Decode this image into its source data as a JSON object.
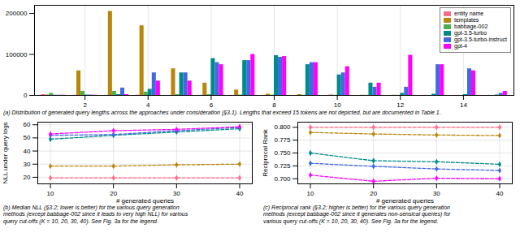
{
  "chart_data": [
    {
      "type": "bar",
      "x": [
        1,
        2,
        3,
        4,
        5,
        6,
        7,
        8,
        9,
        10,
        11,
        12,
        13,
        14,
        15
      ],
      "series": [
        {
          "name": "entity name",
          "color": "#FF6B8A",
          "values": [
            2000,
            500,
            300,
            800,
            200,
            500,
            200,
            300,
            100,
            200,
            100,
            100,
            200,
            100,
            50
          ]
        },
        {
          "name": "templates",
          "color": "#B8860B",
          "values": [
            1000,
            60000,
            205000,
            170000,
            65000,
            30000,
            13000,
            3000,
            2000,
            1000,
            500,
            500,
            300,
            200,
            100
          ]
        },
        {
          "name": "babbage-002",
          "color": "#4CAF50",
          "values": [
            5000,
            10000,
            10000,
            8000,
            2000,
            2000,
            1000,
            800,
            500,
            400,
            300,
            200,
            150,
            100,
            50
          ]
        },
        {
          "name": "gpt-3.5-turbo",
          "color": "#008B8B",
          "values": [
            500,
            1000,
            2000,
            15000,
            55000,
            90000,
            85000,
            97000,
            75000,
            50000,
            30000,
            5000,
            3000,
            2000,
            1000
          ]
        },
        {
          "name": "gpt-3.5-turbo-instruct",
          "color": "#4169E1",
          "values": [
            500,
            1000,
            18000,
            55000,
            55000,
            80000,
            85000,
            93000,
            80000,
            55000,
            20000,
            20000,
            75000,
            65000,
            5000
          ]
        },
        {
          "name": "gpt-4",
          "color": "#FF00FF",
          "values": [
            500,
            500,
            2000,
            35000,
            35000,
            75000,
            100000,
            95000,
            80000,
            70000,
            30000,
            98000,
            75000,
            60000,
            10000
          ]
        }
      ],
      "xlim": [
        0.4,
        15.6
      ],
      "xticks": [
        2,
        4,
        6,
        8,
        10,
        12,
        14
      ],
      "ylim": [
        0,
        220000
      ],
      "yticks": [
        0,
        100000,
        200000
      ],
      "grid": "x",
      "legend": "upper right",
      "caption": "(a) Distribution of generated query lengths across the approaches under consideration (§3.1). Lengths that exceed 15 tokens are not depicted, but are documented in Table 1."
    },
    {
      "type": "line",
      "x": [
        10,
        20,
        30,
        40
      ],
      "series": [
        {
          "name": "entity name",
          "color": "#FF6B8A",
          "values": [
            19.5,
            19.5,
            19.5,
            19.5
          ]
        },
        {
          "name": "templates",
          "color": "#B8860B",
          "values": [
            28.5,
            28.5,
            29.5,
            30.0
          ]
        },
        {
          "name": "gpt-3.5-turbo",
          "color": "#008B8B",
          "values": [
            49.0,
            52.0,
            54.5,
            57.0
          ]
        },
        {
          "name": "gpt-3.5-turbo-instruct",
          "color": "#4169E1",
          "values": [
            52.0,
            52.5,
            55.5,
            58.0
          ]
        },
        {
          "name": "gpt-4",
          "color": "#FF00FF",
          "values": [
            53.0,
            55.5,
            56.5,
            58.5
          ]
        }
      ],
      "xlabel": "# generated queries",
      "ylabel": "NLL under query logs",
      "xlim": [
        8,
        42
      ],
      "xticks": [
        10,
        20,
        30,
        40
      ],
      "ylim": [
        15,
        62
      ],
      "yticks": [
        20,
        30,
        40,
        50,
        60
      ],
      "grid": true,
      "marker": "diamond",
      "line_style": "dashed",
      "caption": "(b) Median NLL (§3.2; lower is better) for the various query generation\nmethods (except babbage‑002 since it leads to very high NLL) for various\nquery cut-offs (K = 10, 20, 30, 40). See Fig. 3a for the legend."
    },
    {
      "type": "line",
      "x": [
        10,
        20,
        30,
        40
      ],
      "series": [
        {
          "name": "entity name",
          "color": "#FF6B8A",
          "values": [
            0.8,
            0.8,
            0.8,
            0.8
          ]
        },
        {
          "name": "templates",
          "color": "#B8860B",
          "values": [
            0.79,
            0.787,
            0.785,
            0.784
          ]
        },
        {
          "name": "gpt-3.5-turbo",
          "color": "#008B8B",
          "values": [
            0.75,
            0.735,
            0.733,
            0.728
          ]
        },
        {
          "name": "gpt-3.5-turbo-instruct",
          "color": "#4169E1",
          "values": [
            0.73,
            0.724,
            0.719,
            0.716
          ]
        },
        {
          "name": "gpt-4",
          "color": "#FF00FF",
          "values": [
            0.707,
            0.695,
            0.701,
            0.7
          ]
        }
      ],
      "xlabel": "# generated queries",
      "ylabel": "Reciprocal Rank",
      "xlim": [
        8,
        42
      ],
      "xticks": [
        10,
        20,
        30,
        40
      ],
      "ylim": [
        0.69,
        0.81
      ],
      "yticks": [
        {
          "value": 0.7,
          "label": "0.700"
        },
        0.725,
        {
          "value": 0.75,
          "label": "0.750"
        },
        0.775,
        {
          "value": 0.8,
          "label": "0.800"
        }
      ],
      "grid": true,
      "marker": "diamond",
      "line_style": "dashed",
      "caption": "(c) Reciprocal rank (§3.2; higher is better) for the various query generation\nmethods (except babbage‑002 since it generates non-sensical queries) for\nvarious query cut-offs (K = 10, 20, 30, 40). See Fig. 3a for the legend."
    }
  ]
}
